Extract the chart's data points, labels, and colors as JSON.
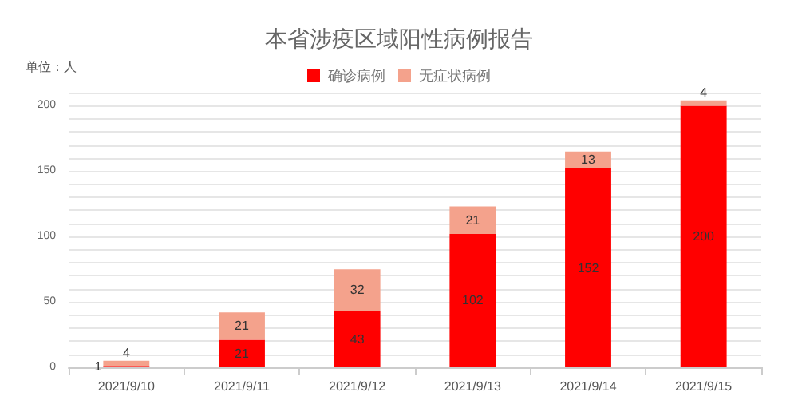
{
  "chart_data": {
    "type": "bar",
    "title": "本省涉疫区域阳性病例报告",
    "ylabel": "单位：人",
    "categories": [
      "2021/9/10",
      "2021/9/11",
      "2021/9/12",
      "2021/9/13",
      "2021/9/14",
      "2021/9/15"
    ],
    "stacked": true,
    "data_labels": true,
    "legend": "top",
    "grid": "y",
    "ylim": [
      0,
      210
    ],
    "yticks": [
      0,
      {
        "value": 10,
        "label": null
      },
      {
        "value": 20,
        "label": null
      },
      {
        "value": 30,
        "label": null
      },
      {
        "value": 40,
        "label": null
      },
      50,
      {
        "value": 60,
        "label": null
      },
      {
        "value": 70,
        "label": null
      },
      {
        "value": 80,
        "label": null
      },
      {
        "value": 90,
        "label": null
      },
      100,
      {
        "value": 110,
        "label": null
      },
      {
        "value": 120,
        "label": null
      },
      {
        "value": 130,
        "label": null
      },
      {
        "value": 140,
        "label": null
      },
      150,
      {
        "value": 160,
        "label": null
      },
      {
        "value": 170,
        "label": null
      },
      {
        "value": 180,
        "label": null
      },
      {
        "value": 190,
        "label": null
      },
      200,
      {
        "value": 210,
        "label": null
      }
    ],
    "series": [
      {
        "name": "确诊病例",
        "color": "#ff0000",
        "values": [
          1,
          21,
          43,
          102,
          152,
          200
        ]
      },
      {
        "name": "无症状病例",
        "color": "#f4a28c",
        "values": [
          4,
          21,
          32,
          21,
          13,
          4
        ]
      }
    ]
  }
}
